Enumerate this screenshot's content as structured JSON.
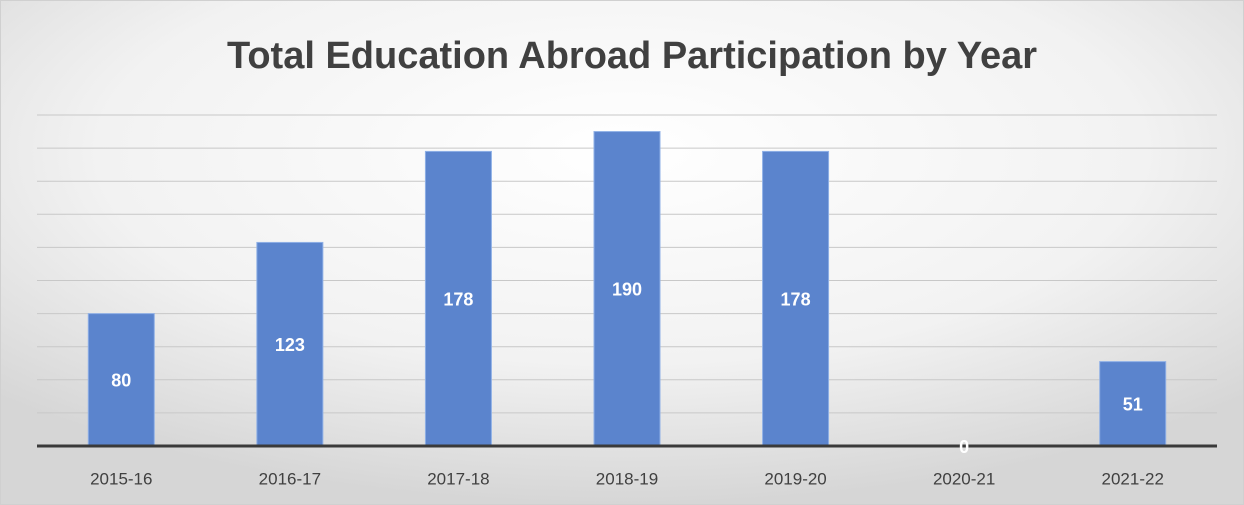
{
  "chart_data": {
    "type": "bar",
    "title": "Total Education Abroad Participation by Year",
    "categories": [
      "2015-16",
      "2016-17",
      "2017-18",
      "2018-19",
      "2019-20",
      "2020-21",
      "2021-22"
    ],
    "values": [
      80,
      123,
      178,
      190,
      178,
      0,
      51
    ],
    "color": "#5b84cd",
    "ylim": [
      0,
      200
    ],
    "yticks": [
      0,
      20,
      40,
      60,
      80,
      100,
      120,
      140,
      160,
      180,
      200
    ],
    "grid": true
  }
}
